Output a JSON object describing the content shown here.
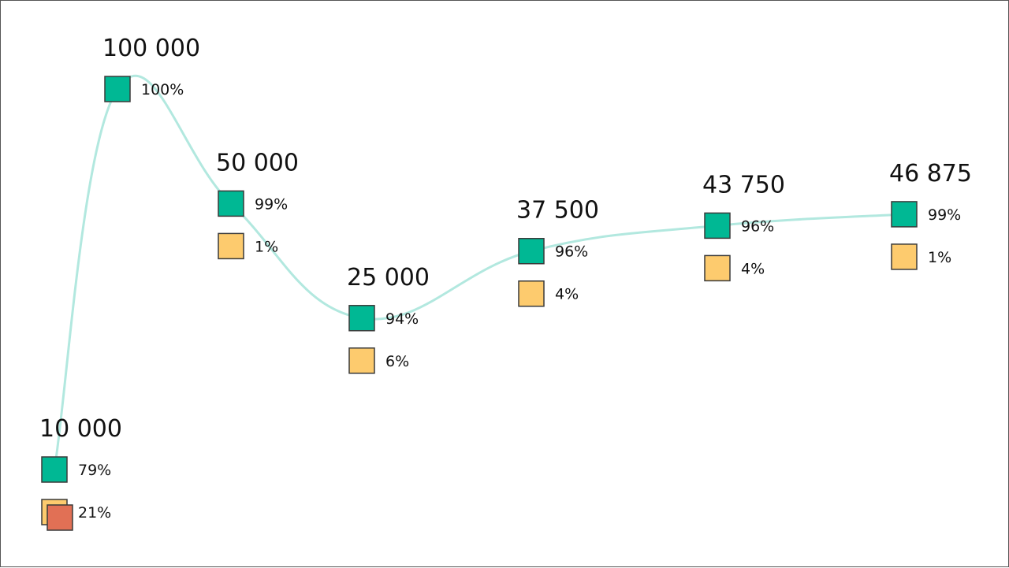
{
  "chart_data": {
    "type": "line",
    "x": [
      1,
      2,
      3,
      4,
      5,
      6,
      7
    ],
    "totals": [
      10000,
      100000,
      50000,
      25000,
      37500,
      43750,
      46875
    ],
    "total_labels": [
      "10 000",
      "100 000",
      "50 000",
      "25 000",
      "37 500",
      "43 750",
      "46 875"
    ],
    "breakdown": [
      [
        {
          "label": "79%",
          "value": 79,
          "color_key": "green"
        },
        {
          "label": "21%",
          "value": 21,
          "color_key": "yellow",
          "overlay_color_key": "red"
        }
      ],
      [
        {
          "label": "100%",
          "value": 100,
          "color_key": "green"
        }
      ],
      [
        {
          "label": "99%",
          "value": 99,
          "color_key": "green"
        },
        {
          "label": "1%",
          "value": 1,
          "color_key": "yellow"
        }
      ],
      [
        {
          "label": "94%",
          "value": 94,
          "color_key": "green"
        },
        {
          "label": "6%",
          "value": 6,
          "color_key": "yellow"
        }
      ],
      [
        {
          "label": "96%",
          "value": 96,
          "color_key": "green"
        },
        {
          "label": "4%",
          "value": 4,
          "color_key": "yellow"
        }
      ],
      [
        {
          "label": "96%",
          "value": 96,
          "color_key": "green"
        },
        {
          "label": "4%",
          "value": 4,
          "color_key": "yellow"
        }
      ],
      [
        {
          "label": "99%",
          "value": 99,
          "color_key": "green"
        },
        {
          "label": "1%",
          "value": 1,
          "color_key": "yellow"
        }
      ]
    ],
    "title": "",
    "xlabel": "",
    "ylabel": "",
    "grid": false,
    "legend": "none"
  },
  "colors": {
    "line": "#b2e8df",
    "green": "#00b894",
    "yellow": "#fdcb6e",
    "red": "#e17055",
    "marker_border": "#3a3a3a",
    "text": "#111111",
    "frame": "#555555"
  }
}
